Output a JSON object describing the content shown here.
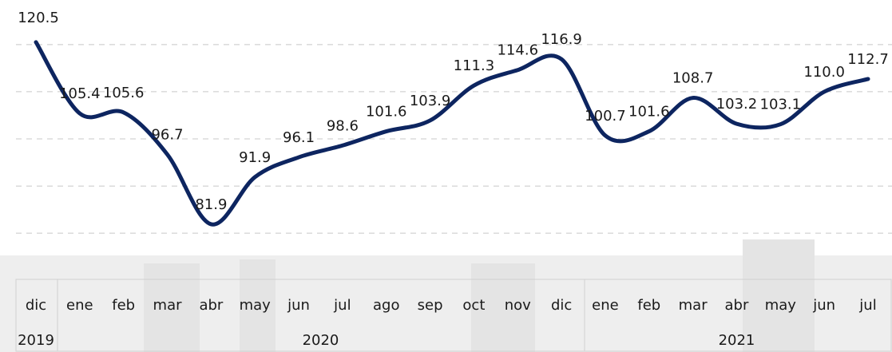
{
  "chart_data": {
    "type": "line",
    "categories": [
      "dic",
      "ene",
      "feb",
      "mar",
      "abr",
      "may",
      "jun",
      "jul",
      "ago",
      "sep",
      "oct",
      "nov",
      "dic",
      "ene",
      "feb",
      "mar",
      "abr",
      "may",
      "jun",
      "jul"
    ],
    "years": [
      "2019",
      "2020",
      "2021"
    ],
    "series": [
      {
        "name": null,
        "color": "#0d2560",
        "values": [
          120.5,
          105.4,
          105.6,
          96.7,
          81.9,
          91.9,
          96.1,
          98.6,
          101.6,
          103.9,
          111.3,
          114.6,
          116.9,
          100.7,
          101.6,
          108.7,
          103.2,
          103.1,
          110.0,
          112.7
        ],
        "value_labels": [
          "120.5",
          "105.4",
          "105.6",
          "96.7",
          "81.9",
          "91.9",
          "96.1",
          "98.6",
          "101.6",
          "103.9",
          "111.3",
          "114.6",
          "116.9",
          "100.7",
          "101.6",
          "108.7",
          "103.2",
          "103.1",
          "110.0",
          "112.7"
        ]
      }
    ],
    "ylim": [
      78,
      122
    ],
    "yticks": [
      80,
      90,
      100,
      110,
      120
    ],
    "grid": true
  }
}
